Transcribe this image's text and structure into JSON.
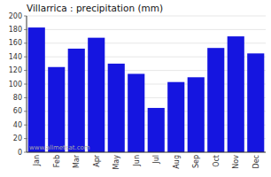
{
  "chart_data": {
    "type": "bar",
    "title": "Villarrica : precipitation (mm)",
    "categories": [
      "Jan",
      "Feb",
      "Mar",
      "Apr",
      "May",
      "Jun",
      "Jul",
      "Aug",
      "Sep",
      "Oct",
      "Nov",
      "Dec"
    ],
    "values": [
      183,
      125,
      152,
      168,
      130,
      115,
      65,
      103,
      110,
      153,
      170,
      145
    ],
    "color": "#1515e0",
    "ylim": [
      0,
      200
    ],
    "yticks": [
      0,
      20,
      40,
      60,
      80,
      100,
      120,
      140,
      160,
      180,
      200
    ],
    "grid": true,
    "annotation": "www.allmetsat.com"
  }
}
